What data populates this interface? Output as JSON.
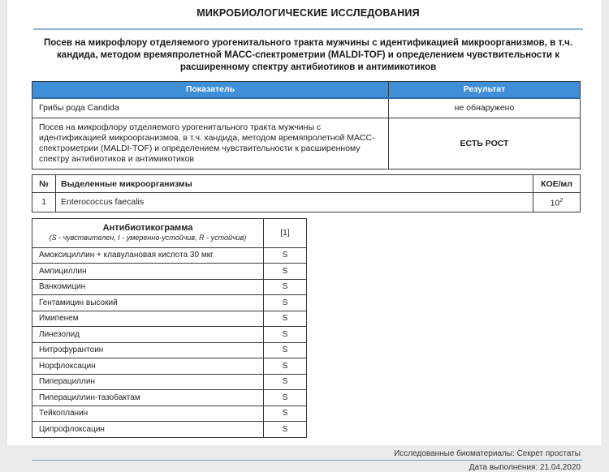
{
  "page": {
    "title": "МИКРОБИОЛОГИЧЕСКИЕ ИССЛЕДОВАНИЯ",
    "intro": "Посев на микрофлору отделяемого урогенитального тракта мужчины с идентификацией микроорганизмов, в т.ч. кандида, методом времяпролетной МАСС-спектрометрии (MALDI-TOF) и определением чувствительности к расширенному  спектру антибиотиков и антимикотиков"
  },
  "results_table": {
    "headers": {
      "indicator": "Показатель",
      "result": "Результат"
    },
    "rows": [
      {
        "indicator": "Грибы рода Candida",
        "result": "не обнаружено"
      },
      {
        "indicator": "Посев на микрофлору отделяемого урогенитального тракта мужчины с идентификацией микроорганизмов, в т.ч. кандида, методом времяпролетной МАСС-спектрометрии (MALDI-TOF) и определением чувствительности к расширенному  спектру антибиотиков и антимикотиков",
        "result": "ЕСТЬ РОСТ"
      }
    ]
  },
  "organisms_table": {
    "headers": {
      "num": "№",
      "name": "Выделенные микроорганизмы",
      "cfu": "КОЕ/мл"
    },
    "rows": [
      {
        "num": "1",
        "name": "Enterococcus faecalis",
        "cfu_base": "10",
        "cfu_exp": "2"
      }
    ]
  },
  "antibiogram": {
    "title": "Антибиотикограмма",
    "legend": "(S - чувствителен, I - умеренно-устойчив, R - устойчив)",
    "column_header": "[1]",
    "rows": [
      {
        "name": "Амоксициллин + клавулановая кислота 30 мкг",
        "value": "S"
      },
      {
        "name": "Ампициллин",
        "value": "S"
      },
      {
        "name": "Ванкомицин",
        "value": "S"
      },
      {
        "name": "Гентамицин высокий",
        "value": "S"
      },
      {
        "name": "Имипенем",
        "value": "S"
      },
      {
        "name": "Линезолид",
        "value": "S"
      },
      {
        "name": "Нитрофурантоин",
        "value": "S"
      },
      {
        "name": "Норфлоксацин",
        "value": "S"
      },
      {
        "name": "Пиперациллин",
        "value": "S"
      },
      {
        "name": "Пиперациллин-тазобактам",
        "value": "S"
      },
      {
        "name": "Тейкопланин",
        "value": "S"
      },
      {
        "name": "Ципрофлоксацин",
        "value": "S"
      }
    ]
  },
  "footer": {
    "biomaterials": "Исследованные биоматериалы: Секрет простаты",
    "date": "Дата выполнения: 21.04.2020"
  },
  "colors": {
    "header_blue": "#3e8ed8",
    "rule_blue": "#8db4d6",
    "footer_rule_blue": "#76a3c9",
    "text": "#222222"
  }
}
